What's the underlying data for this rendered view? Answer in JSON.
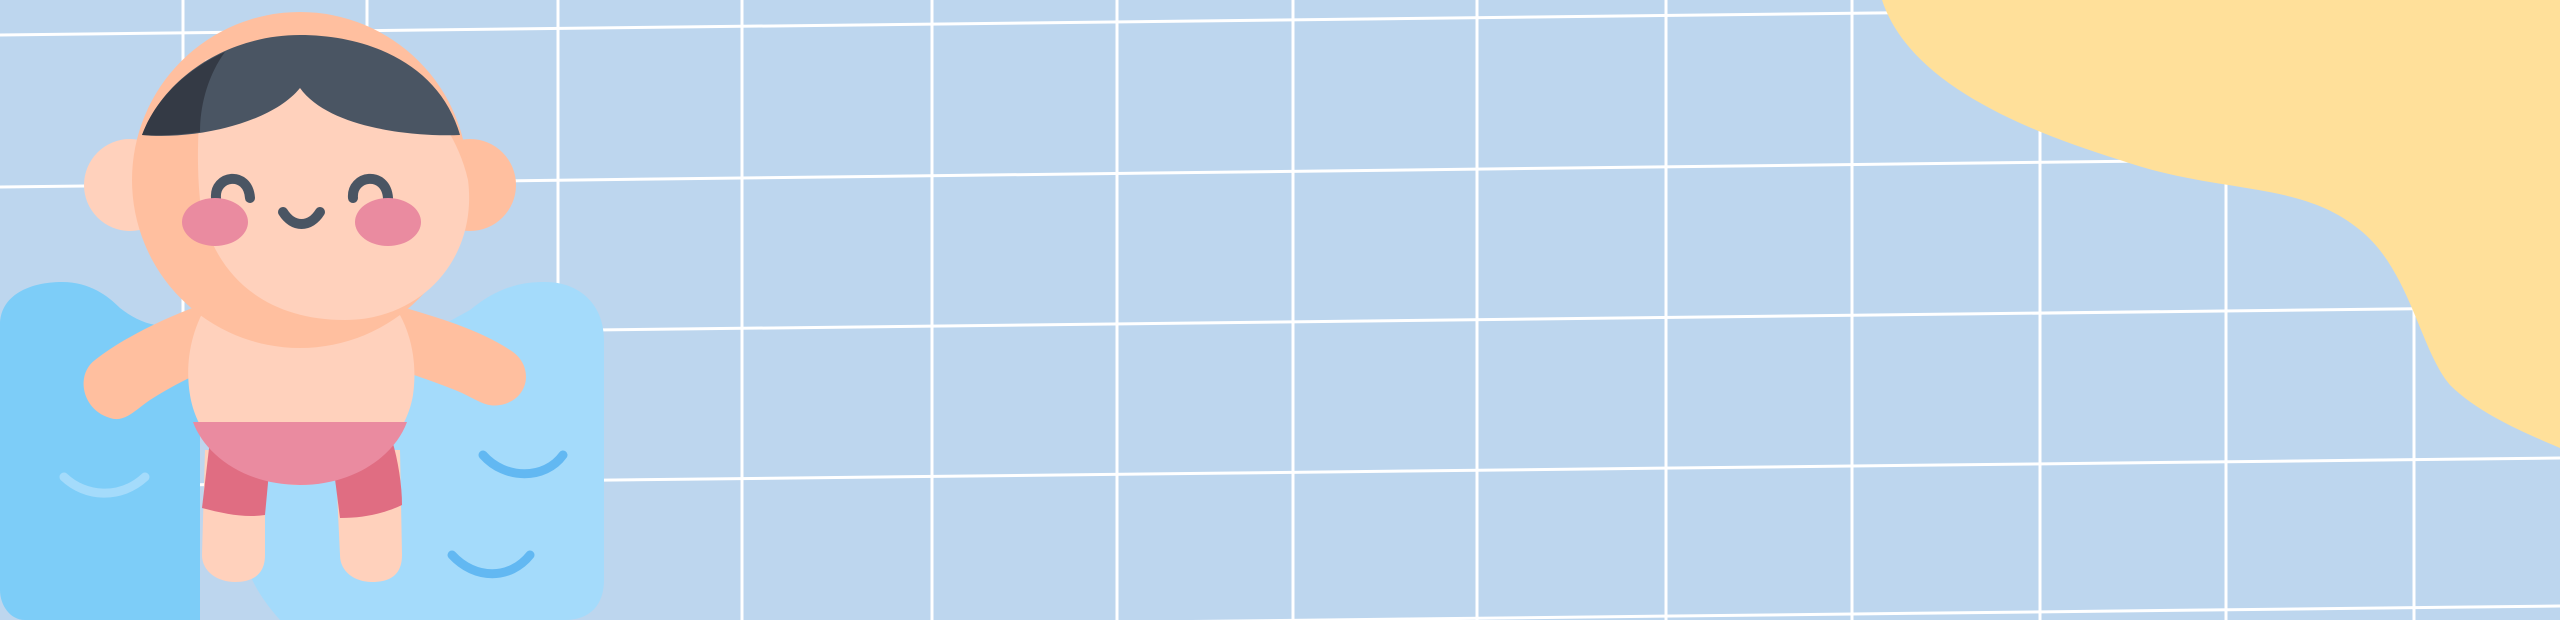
{
  "scene": {
    "description_text": "",
    "colors": {
      "background": "#bdd6ee",
      "grid_line": "#ffffff",
      "sand_blob": "#ffe09a",
      "water_dark": "#7dcdf8",
      "water_light": "#a4dbfb",
      "water_wave": "#62b8f2",
      "skin": "#ffd1bc",
      "skin_shadow": "#ffbf9f",
      "hair": "#4a5563",
      "hair_dark": "#343a45",
      "blush": "#ea8ba0",
      "shorts": "#ea8ba0",
      "legs_shorts": "#e06d82",
      "eyes": "#4a5563"
    },
    "icons": {
      "character": "swimming-kid-icon",
      "water": "pool-water-icon",
      "blob": "sand-blob-icon"
    }
  }
}
